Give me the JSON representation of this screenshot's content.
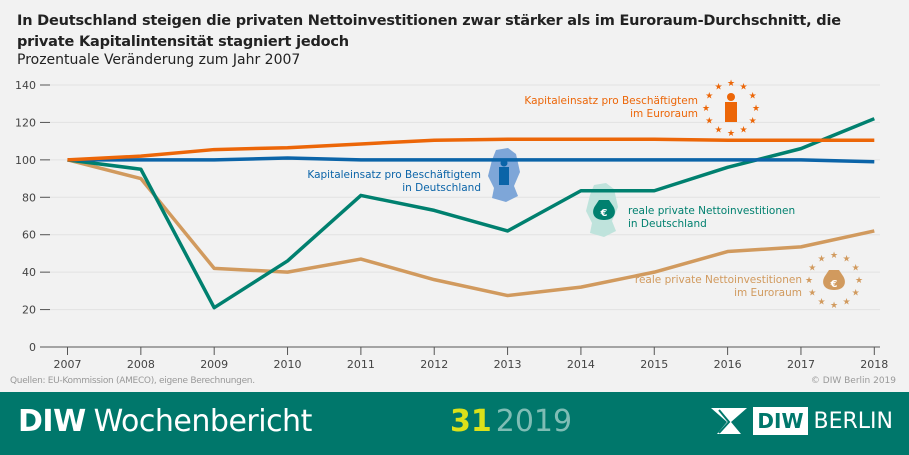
{
  "title": "In Deutschland steigen die privaten Nettoinvestitionen zwar stärker als im Euroraum-Durchschnitt, die private Kapitalintensität stagniert jedoch",
  "subtitle": "Prozentuale Veränderung zum Jahr 2007",
  "source": "Quellen: EU-Kommission (AMECO), eigene Berechnungen.",
  "copyright": "© DIW Berlin 2019",
  "footer": {
    "brand_bold": "DIW",
    "brand": "Wochenbericht",
    "issue_number": "31",
    "issue_year": "2019",
    "logo_box": "DIW",
    "logo_text": "BERLIN"
  },
  "chart_data": {
    "type": "line",
    "x": [
      2007,
      2008,
      2009,
      2010,
      2011,
      2012,
      2013,
      2014,
      2015,
      2016,
      2017,
      2018
    ],
    "ylim": [
      0,
      140
    ],
    "yticks": [
      0,
      20,
      40,
      60,
      80,
      100,
      120,
      140
    ],
    "grid": true,
    "series": [
      {
        "name": "Kapitaleinsatz pro Beschäftigtem im Euroraum",
        "color": "#ec6608",
        "values": [
          100,
          102,
          105.5,
          106.5,
          108.5,
          110.5,
          111,
          111,
          111,
          110.5,
          110.5,
          110.5
        ],
        "label_lines": [
          "Kapitaleinsatz pro Beschäftigtem",
          "im Euroraum"
        ]
      },
      {
        "name": "Kapitaleinsatz pro Beschäftigtem in Deutschland",
        "color": "#0b64a8",
        "values": [
          100,
          100,
          100,
          101,
          100,
          100,
          100,
          100,
          100,
          100,
          100,
          99
        ],
        "label_lines": [
          "Kapitaleinsatz pro Beschäftigtem",
          "in Deutschland"
        ]
      },
      {
        "name": "reale private Nettoinvestitionen in Deutschland",
        "color": "#00806f",
        "values": [
          100,
          95,
          21,
          46,
          81,
          73,
          62,
          83.5,
          83.5,
          96,
          106,
          122
        ],
        "label_lines": [
          "reale private Nettoinvestitionen",
          "in Deutschland"
        ]
      },
      {
        "name": "reale private Nettoinvestitionen im Euroraum",
        "color": "#d19a5e",
        "values": [
          100,
          90,
          42,
          40,
          47,
          36,
          27.5,
          32,
          40,
          51,
          53.5,
          62
        ],
        "label_lines": [
          "reale private Nettoinvestitionen",
          "im Euroraum"
        ]
      }
    ]
  }
}
